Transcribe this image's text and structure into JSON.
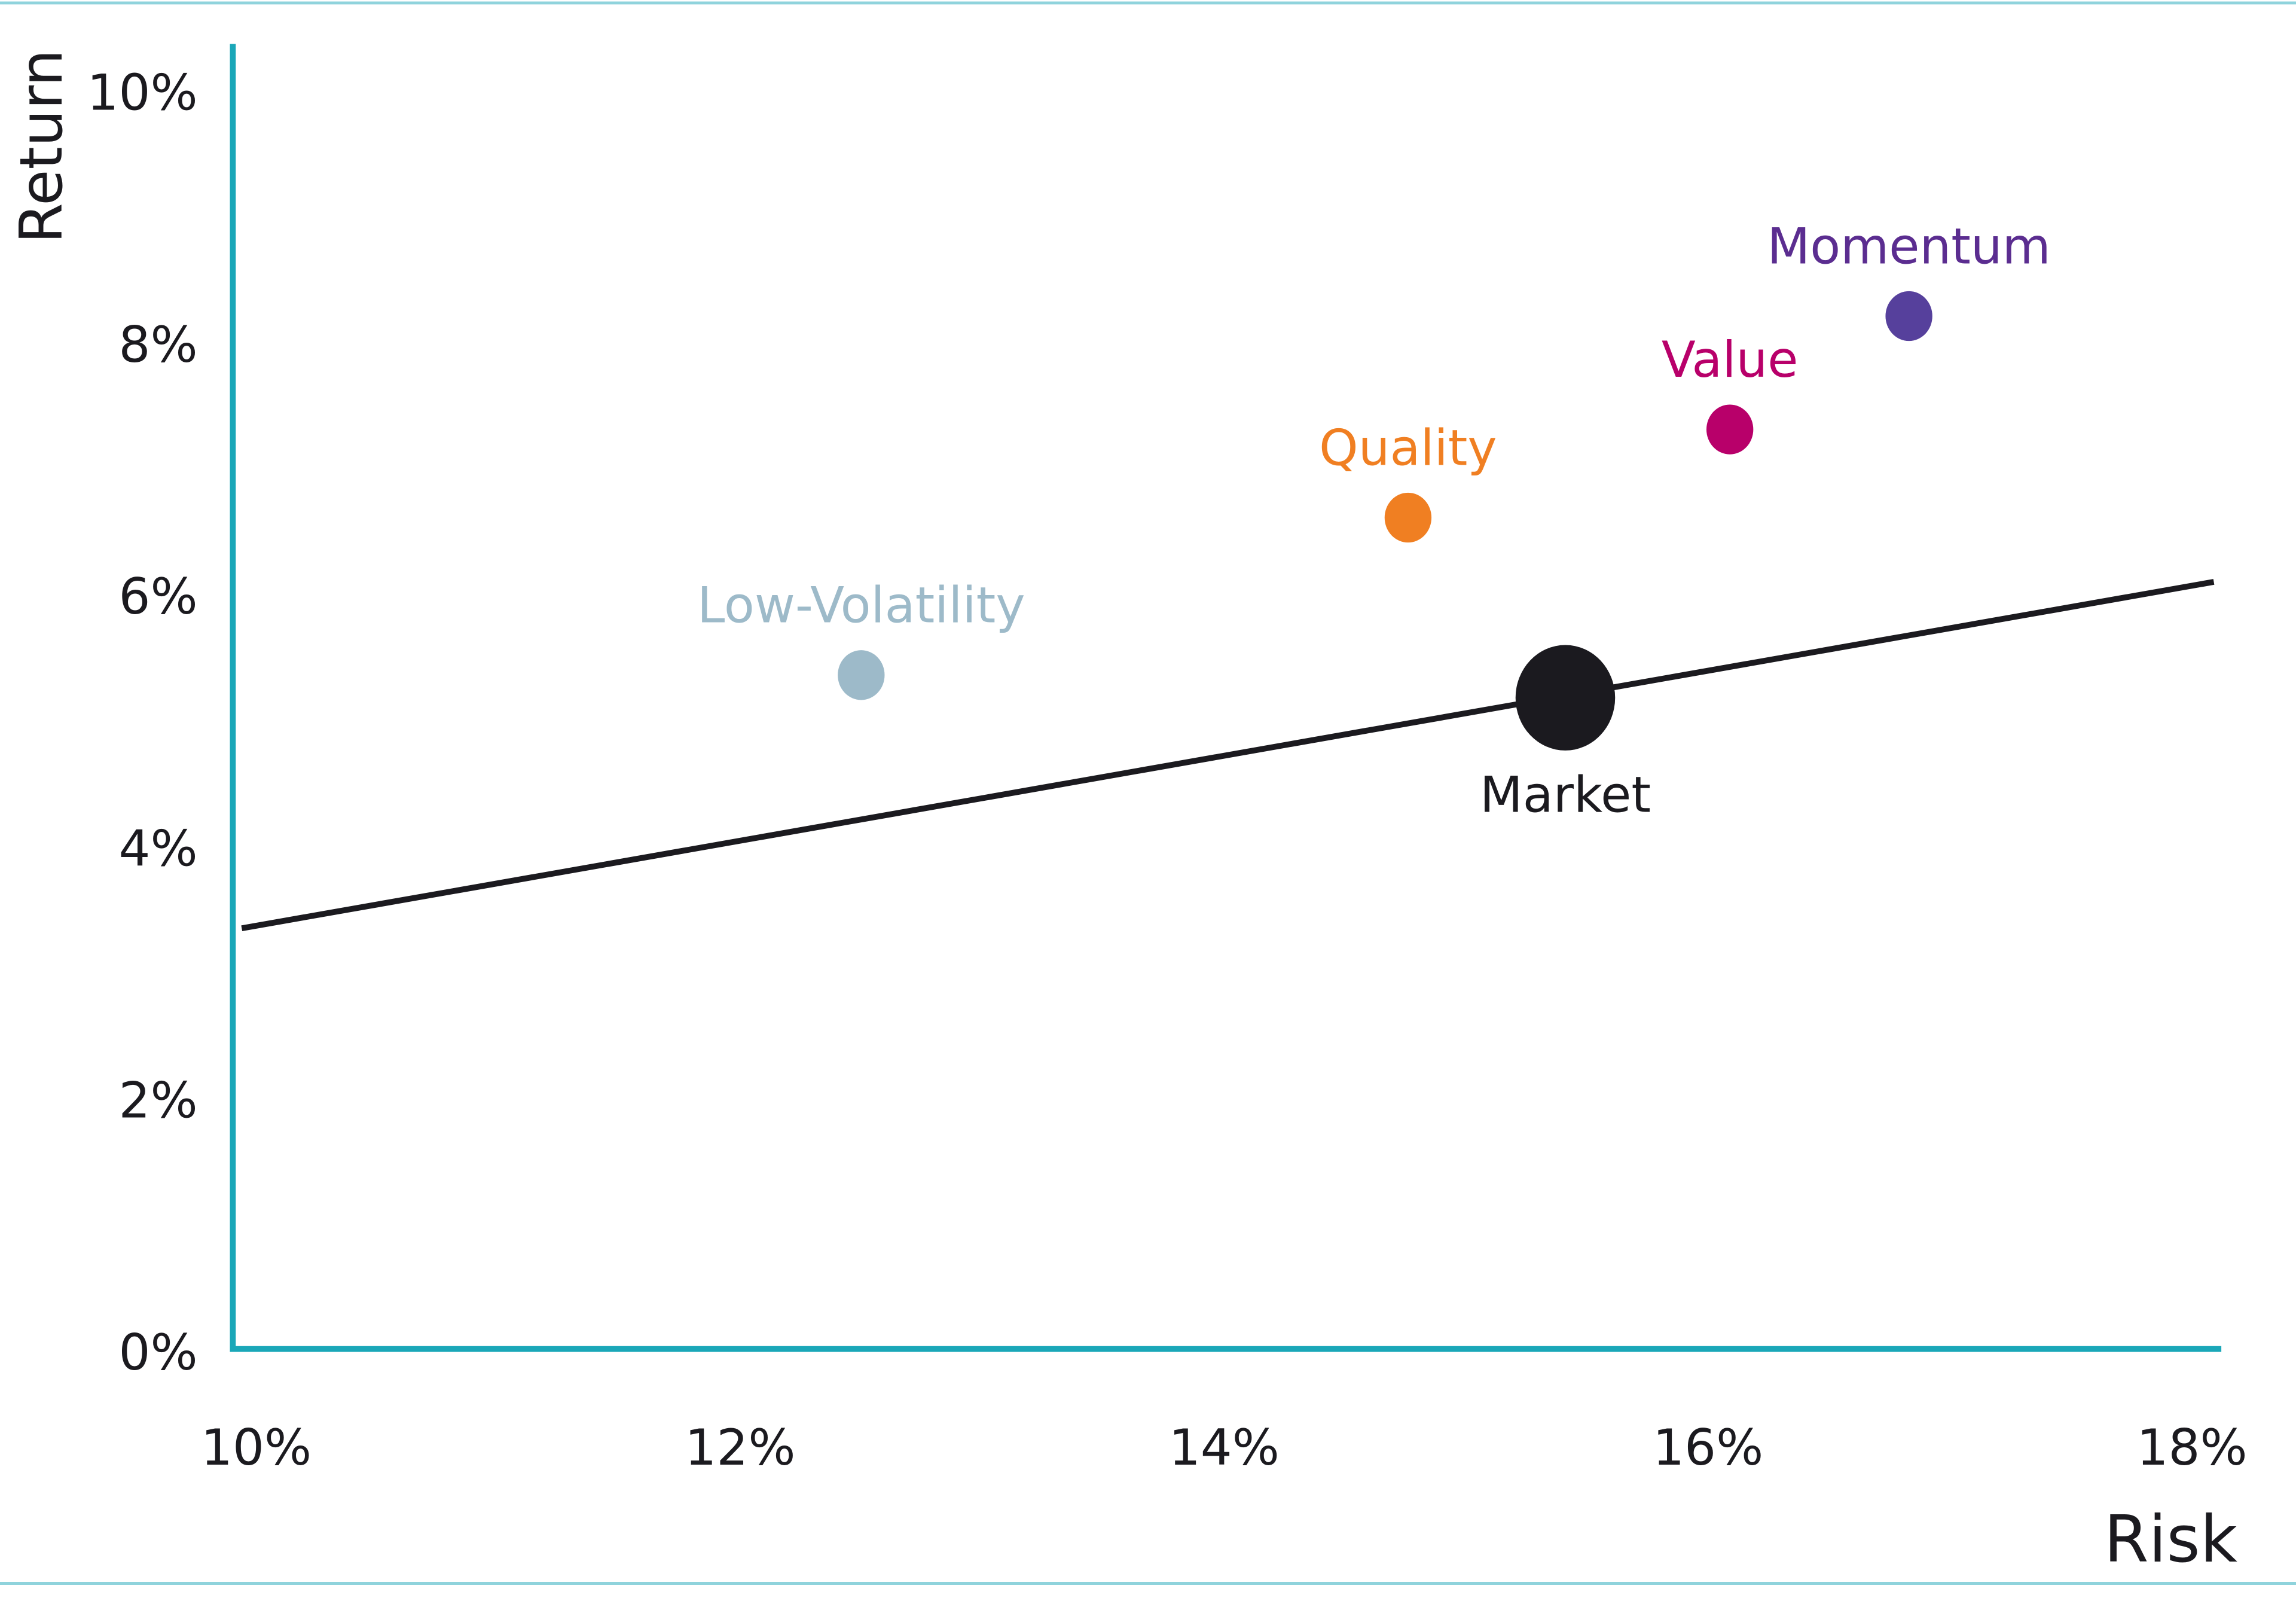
{
  "chart_data": {
    "type": "scatter",
    "title": "",
    "xlabel": "Risk",
    "ylabel": "Return",
    "xlim": [
      9.9,
      18.1
    ],
    "ylim": [
      0,
      10.2
    ],
    "xticks": [
      10,
      12,
      14,
      16,
      18
    ],
    "yticks": [
      0,
      2,
      4,
      6,
      8,
      10
    ],
    "xtick_labels": [
      "10%",
      "12%",
      "14%",
      "16%",
      "18%"
    ],
    "ytick_labels": [
      "0%",
      "2%",
      "4%",
      "6%",
      "8%",
      "10%"
    ],
    "grid": false,
    "points": [
      {
        "name": "Low-Volatility",
        "x": 12.5,
        "y": 5.35,
        "color": "#9dbac9",
        "size": "small",
        "label_position": "above"
      },
      {
        "name": "Quality",
        "x": 14.76,
        "y": 6.6,
        "color": "#f07f22",
        "size": "small",
        "label_position": "above"
      },
      {
        "name": "Value",
        "x": 16.09,
        "y": 7.3,
        "color": "#b8006a",
        "size": "small",
        "label_position": "above"
      },
      {
        "name": "Momentum",
        "x": 16.83,
        "y": 8.2,
        "color": "#56409c",
        "size": "small",
        "label_position": "above"
      },
      {
        "name": "Market",
        "x": 15.41,
        "y": 5.17,
        "color": "#1b1a1f",
        "size": "large",
        "label_position": "below"
      }
    ],
    "label_colors": {
      "Low-Volatility": "#9dbac9",
      "Quality": "#f07f22",
      "Value": "#b8006a",
      "Momentum": "#5b2d90",
      "Market": "#1b1a1f"
    },
    "line": {
      "name": "market-line",
      "x": [
        9.94,
        18.09
      ],
      "y": [
        3.34,
        6.09
      ],
      "color": "#1b1a1f"
    },
    "axis_color": "#1aa7b8"
  }
}
